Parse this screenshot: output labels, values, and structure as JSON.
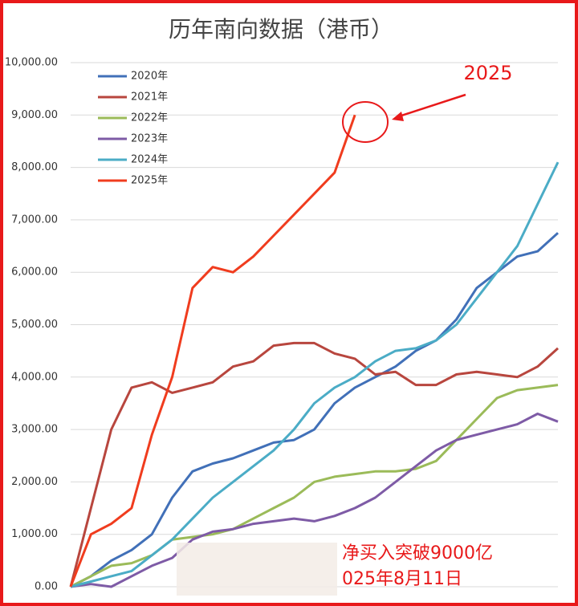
{
  "chart_data": {
    "type": "line",
    "title": "历年南向数据（港币）",
    "categories": [
      null,
      null,
      null,
      null,
      null,
      null,
      null,
      null,
      null,
      null,
      null,
      null,
      null,
      null,
      null,
      null,
      null,
      null,
      null,
      null,
      null,
      null,
      null,
      null,
      null
    ],
    "series": [
      {
        "name": "2020年",
        "color": "#4170b8",
        "values": [
          0,
          200,
          500,
          700,
          1000,
          1700,
          2200,
          2350,
          2450,
          2600,
          2750,
          2800,
          3000,
          3500,
          3800,
          4000,
          4200,
          4500,
          4700,
          5100,
          5700,
          6000,
          6300,
          6400,
          6750
        ]
      },
      {
        "name": "2021年",
        "color": "#b8463e",
        "values": [
          0,
          1500,
          3000,
          3800,
          3900,
          3700,
          3800,
          3900,
          4200,
          4300,
          4600,
          4650,
          4650,
          4450,
          4350,
          4050,
          4100,
          3850,
          3850,
          4050,
          4100,
          4050,
          4000,
          4200,
          4550
        ]
      },
      {
        "name": "2022年",
        "color": "#9bbb59",
        "values": [
          0,
          200,
          400,
          450,
          600,
          900,
          950,
          1000,
          1100,
          1300,
          1500,
          1700,
          2000,
          2100,
          2150,
          2200,
          2200,
          2250,
          2400,
          2800,
          3200,
          3600,
          3750,
          3800,
          3850
        ]
      },
      {
        "name": "2023年",
        "color": "#7e5ba6",
        "values": [
          0,
          50,
          0,
          200,
          400,
          550,
          900,
          1050,
          1100,
          1200,
          1250,
          1300,
          1250,
          1350,
          1500,
          1700,
          2000,
          2300,
          2600,
          2800,
          2900,
          3000,
          3100,
          3300,
          3150
        ]
      },
      {
        "name": "2024年",
        "color": "#4bacc6",
        "values": [
          0,
          100,
          200,
          300,
          600,
          900,
          1300,
          1700,
          2000,
          2300,
          2600,
          3000,
          3500,
          3800,
          4000,
          4300,
          4500,
          4550,
          4700,
          5000,
          5500,
          6000,
          6500,
          7300,
          8100
        ]
      },
      {
        "name": "2025年",
        "color": "#f03c1e",
        "values": [
          0,
          1000,
          1200,
          1500,
          2900,
          4000,
          5700,
          6100,
          6000,
          6300,
          6700,
          7100,
          7500,
          7900,
          9000,
          null,
          null,
          null,
          null,
          null,
          null,
          null,
          null,
          null,
          null
        ]
      }
    ],
    "ylim": [
      0,
      10000
    ],
    "yticks": [
      {
        "value": 0,
        "label": "0.00"
      },
      {
        "value": 1000,
        "label": "1,000.00"
      },
      {
        "value": 2000,
        "label": "2,000.00"
      },
      {
        "value": 3000,
        "label": "3,000.00"
      },
      {
        "value": 4000,
        "label": "4,000.00"
      },
      {
        "value": 5000,
        "label": "5,000.00"
      },
      {
        "value": 6000,
        "label": "6,000.00"
      },
      {
        "value": 7000,
        "label": "7,000.00"
      },
      {
        "value": 8000,
        "label": "8,000.00"
      },
      {
        "value": 9000,
        "label": "9,000.00"
      },
      {
        "value": 10000,
        "label": "10,000.00"
      }
    ],
    "grid": true,
    "annotations": [
      "2025",
      "净买入突破9000亿",
      "025年8月11日"
    ]
  }
}
